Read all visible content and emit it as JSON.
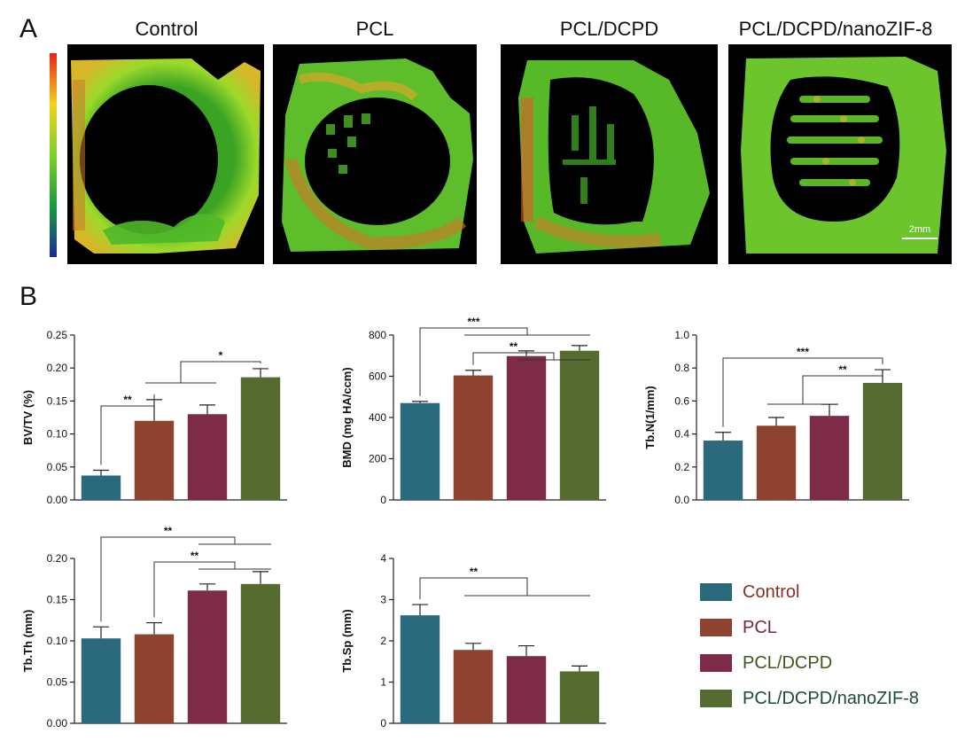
{
  "panels": {
    "a": "A",
    "b": "B"
  },
  "images": {
    "labels": [
      "Control",
      "PCL",
      "PCL/DCPD",
      "PCL/DCPD/nanoZIF-8"
    ],
    "scale_bar": "2mm"
  },
  "colors": {
    "Control": "#2b6a7c",
    "PCL": "#8e4330",
    "PCL/DCPD": "#7e2b47",
    "PCL/DCPD/nanoZIF-8": "#566b30",
    "legend_text": [
      "#8a2f22",
      "#7a2540",
      "#3d5a1a",
      "#1d4a3a"
    ]
  },
  "legend": [
    "Control",
    "PCL",
    "PCL/DCPD",
    "PCL/DCPD/nanoZIF-8"
  ],
  "chart_data": [
    {
      "type": "bar",
      "categories": [
        "Control",
        "PCL",
        "PCL/DCPD",
        "PCL/DCPD/nanoZIF-8"
      ],
      "values": [
        0.037,
        0.12,
        0.13,
        0.186
      ],
      "errors": [
        0.008,
        0.032,
        0.014,
        0.013
      ],
      "ylabel": "BV/TV (%)",
      "ylim": [
        0,
        0.25
      ],
      "yticks": [
        "0.00",
        "0.05",
        "0.10",
        "0.15",
        "0.20",
        "0.25"
      ],
      "annotations": [
        "**",
        "*"
      ]
    },
    {
      "type": "bar",
      "categories": [
        "Control",
        "PCL",
        "PCL/DCPD",
        "PCL/DCPD/nanoZIF-8"
      ],
      "values": [
        470,
        604,
        698,
        724
      ],
      "errors": [
        8,
        25,
        25,
        25
      ],
      "ylabel": "BMD (mg HA/ccm)",
      "ylim": [
        0,
        800
      ],
      "yticks": [
        "0",
        "200",
        "400",
        "600",
        "800"
      ],
      "annotations": [
        "***",
        "**"
      ]
    },
    {
      "type": "bar",
      "categories": [
        "Control",
        "PCL",
        "PCL/DCPD",
        "PCL/DCPD/nanoZIF-8"
      ],
      "values": [
        0.36,
        0.45,
        0.51,
        0.71
      ],
      "errors": [
        0.05,
        0.05,
        0.07,
        0.08
      ],
      "ylabel": "Tb.N(1/mm)",
      "ylim": [
        0,
        1.0
      ],
      "yticks": [
        "0.0",
        "0.2",
        "0.4",
        "0.6",
        "0.8",
        "1.0"
      ],
      "annotations": [
        "***",
        "**"
      ]
    },
    {
      "type": "bar",
      "categories": [
        "Control",
        "PCL",
        "PCL/DCPD",
        "PCL/DCPD/nanoZIF-8"
      ],
      "values": [
        0.103,
        0.108,
        0.161,
        0.169
      ],
      "errors": [
        0.014,
        0.014,
        0.008,
        0.015
      ],
      "ylabel": "Tb.Th (mm)",
      "ylim": [
        0,
        0.2
      ],
      "yticks": [
        "0.00",
        "0.05",
        "0.10",
        "0.15",
        "0.20"
      ],
      "annotations": [
        "**",
        "**"
      ]
    },
    {
      "type": "bar",
      "categories": [
        "Control",
        "PCL",
        "PCL/DCPD",
        "PCL/DCPD/nanoZIF-8"
      ],
      "values": [
        2.62,
        1.78,
        1.63,
        1.26
      ],
      "errors": [
        0.26,
        0.16,
        0.25,
        0.13
      ],
      "ylabel": "Tb.Sp (mm)",
      "ylim": [
        0,
        4
      ],
      "yticks": [
        "0",
        "1",
        "2",
        "3",
        "4"
      ],
      "annotations": [
        "**"
      ]
    }
  ]
}
